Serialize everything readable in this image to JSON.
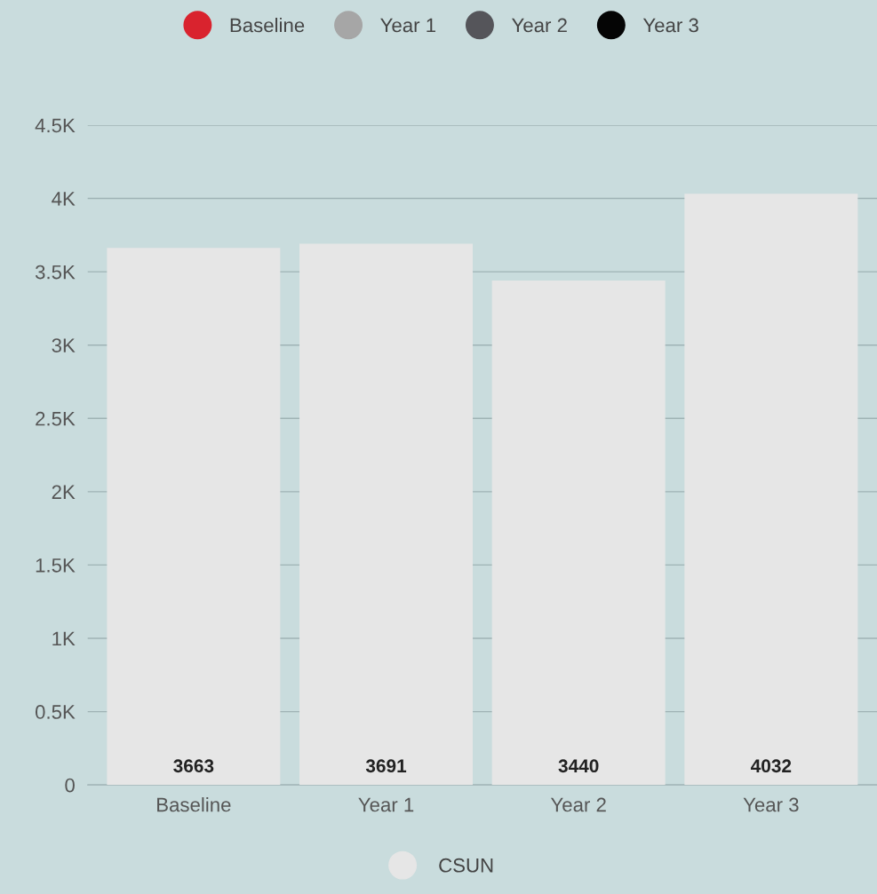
{
  "chart_data": {
    "type": "bar",
    "categories": [
      "Baseline",
      "Year 1",
      "Year 2",
      "Year 3"
    ],
    "series": [
      {
        "name": "Baseline",
        "color": "#d9232e",
        "values": [
          null,
          null,
          null,
          null
        ]
      },
      {
        "name": "Year 1",
        "color": "#a6a6a6",
        "values": [
          null,
          null,
          null,
          null
        ]
      },
      {
        "name": "Year 2",
        "color": "#55555a",
        "values": [
          null,
          null,
          null,
          null
        ]
      },
      {
        "name": "Year 3",
        "color": "#050505",
        "values": [
          null,
          null,
          null,
          null
        ]
      },
      {
        "name": "CSUN",
        "color": "#e6e6e6",
        "values": [
          3663,
          3691,
          3440,
          4032
        ]
      }
    ],
    "ylim": [
      0,
      4500
    ],
    "yticks": [
      0,
      {
        "value": 500,
        "label": "0.5K"
      },
      {
        "value": 1000,
        "label": "1K"
      },
      {
        "value": 1500,
        "label": "1.5K"
      },
      {
        "value": 2000,
        "label": "2K"
      },
      {
        "value": 2500,
        "label": "2.5K"
      },
      {
        "value": 3000,
        "label": "3K"
      },
      {
        "value": 3500,
        "label": "3.5K"
      },
      {
        "value": 4000,
        "label": "4K"
      },
      {
        "value": 4500,
        "label": "4.5K"
      }
    ],
    "grid": "y",
    "legend": "top",
    "data_labels": true
  }
}
